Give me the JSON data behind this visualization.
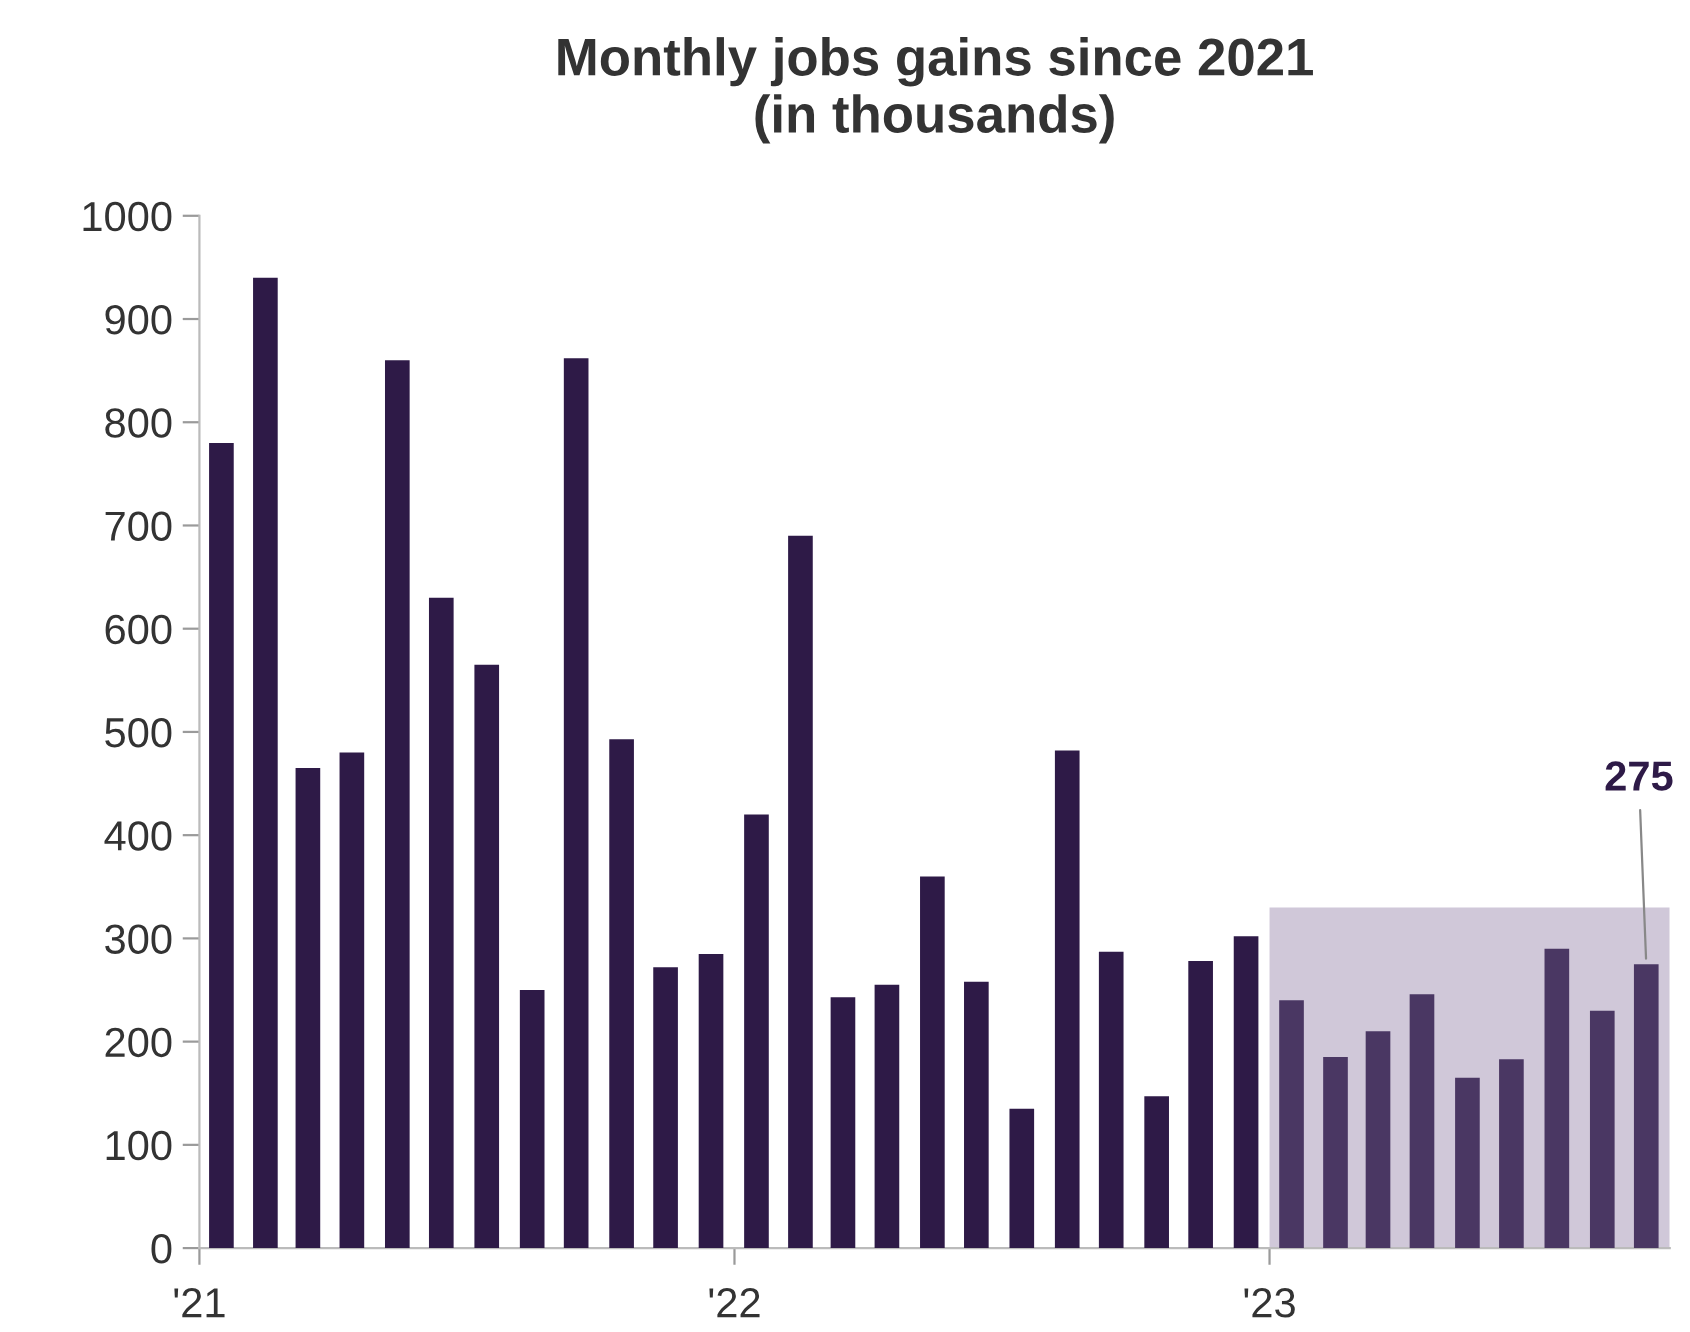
{
  "chart_data": {
    "type": "bar",
    "title": "Monthly jobs gains since 2021\n(in thousands)",
    "x": [
      "2021-01-16",
      "2021-02-15",
      "2021-03-16",
      "2021-04-15",
      "2021-05-16",
      "2021-06-15",
      "2021-07-16",
      "2021-08-16",
      "2021-09-15",
      "2021-10-16",
      "2021-11-15",
      "2021-12-16",
      "2022-01-16",
      "2022-02-15",
      "2022-03-16",
      "2022-04-15",
      "2022-05-16",
      "2022-06-15",
      "2022-07-16",
      "2022-08-16",
      "2022-09-15",
      "2022-10-16",
      "2022-11-15",
      "2022-12-16",
      "2023-01-16",
      "2023-02-15",
      "2023-03-16",
      "2023-04-15",
      "2023-05-16",
      "2023-06-15",
      "2023-07-16",
      "2023-08-16",
      "2023-09-15"
    ],
    "values": [
      780,
      940,
      465,
      480,
      860,
      630,
      565,
      250,
      862,
      493,
      272,
      285,
      420,
      690,
      243,
      255,
      360,
      258,
      135,
      482,
      287,
      147,
      278,
      302,
      240,
      185,
      210,
      246,
      165,
      183,
      290,
      230,
      275
    ],
    "colors": [
      "#2e1a47",
      "#2e1a47",
      "#2e1a47",
      "#2e1a47",
      "#2e1a47",
      "#2e1a47",
      "#2e1a47",
      "#2e1a47",
      "#2e1a47",
      "#2e1a47",
      "#2e1a47",
      "#2e1a47",
      "#2e1a47",
      "#2e1a47",
      "#2e1a47",
      "#2e1a47",
      "#2e1a47",
      "#2e1a47",
      "#2e1a47",
      "#2e1a47",
      "#2e1a47",
      "#2e1a47",
      "#2e1a47",
      "#2e1a47",
      "#4a3763",
      "#4a3763",
      "#4a3763",
      "#4a3763",
      "#4a3763",
      "#4a3763",
      "#4a3763",
      "#4a3763",
      "#4a3763"
    ],
    "xlim": [
      "2021-01-01",
      "2023-10-01"
    ],
    "xticks": [
      {
        "value": "2021-01-01",
        "label": "'21"
      },
      {
        "value": "2022-01-01",
        "label": "'22"
      },
      {
        "value": "2023-01-01",
        "label": "'23"
      }
    ],
    "ylim": [
      0,
      1000
    ],
    "yticks": [
      0,
      100,
      200,
      300,
      400,
      500,
      600,
      700,
      800,
      900,
      1000
    ],
    "bands": [
      {
        "axis": "x",
        "from": "2023-01-01",
        "to": "2023-10-01",
        "color": "#d0c8d9"
      }
    ],
    "annotations": [
      {
        "text": "275",
        "x": "2023-09-15",
        "y": 275
      }
    ],
    "grid": false
  }
}
